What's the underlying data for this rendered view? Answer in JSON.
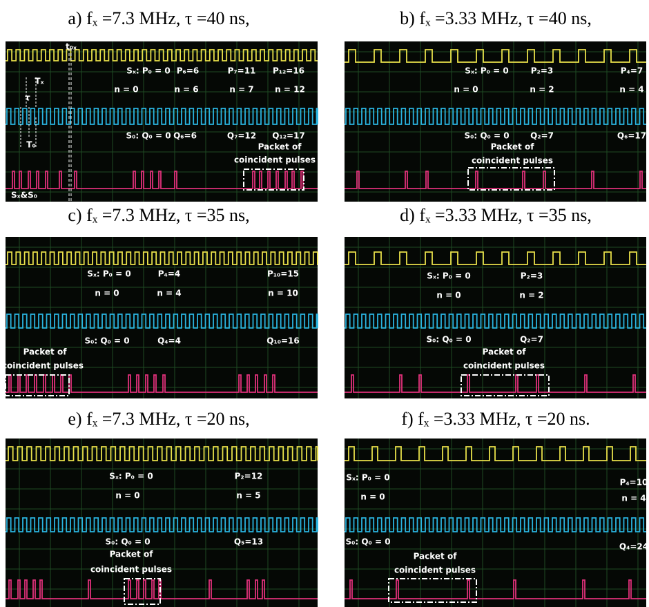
{
  "panels": [
    {
      "caption": "a) fₓ =7.3 MHz, τ =40 ns,",
      "labels": [
        "t₀ₓ",
        "Tₓ",
        "τ",
        "T₀",
        "Sₓ: P₀ = 0",
        "P₆=6",
        "P₇=11",
        "P₁₂=16",
        "n = 0",
        "n = 6",
        "n = 7",
        "n = 12",
        "S₀: Q₀ = 0",
        "Q₆=6",
        "Q₇=12",
        "Q₁₂=17",
        "Packet of",
        "coincident pulses",
        "Sₓ&S₀"
      ]
    },
    {
      "caption": "b) fₓ =3.33 MHz, τ =40 ns,",
      "labels": [
        "Sₓ: P₀ = 0",
        "P₂=3",
        "P₄=7",
        "n = 0",
        "n = 2",
        "n = 4",
        "S₀: Q₀ = 0",
        "Q₂=7",
        "Q₆=17",
        "Packet of",
        "coincident pulses"
      ]
    },
    {
      "caption": "c) fₓ =7.3 MHz, τ =35 ns,",
      "labels": [
        "Sₓ: P₀ = 0",
        "P₄=4",
        "P₁₀=15",
        "n = 0",
        "n = 4",
        "n = 10",
        "S₀: Q₀ = 0",
        "Q₄=4",
        "Q₁₀=16",
        "Packet of",
        "coincident pulses"
      ]
    },
    {
      "caption": "d) fₓ =3.33 MHz, τ =35 ns,",
      "labels": [
        "Sₓ: P₀ = 0",
        "P₂=3",
        "n = 0",
        "n = 2",
        "S₀: Q₀ = 0",
        "Q₂=7",
        "Packet of",
        "coincident pulses"
      ]
    },
    {
      "caption": "e) fₓ =7.3 MHz, τ =20 ns,",
      "labels": [
        "Sₓ: P₀ = 0",
        "P₂=12",
        "n = 0",
        "n = 5",
        "S₀: Q₀ = 0",
        "Q₅=13",
        "Packet of",
        "coincident pulses"
      ]
    },
    {
      "caption": "f) fₓ =3.33 MHz, τ =20 ns.",
      "labels": [
        "Sₓ: P₀ = 0",
        "P₄=10",
        "n = 0",
        "n = 4",
        "S₀: Q₀ = 0",
        "Q₄=24",
        "Packet of",
        "coincident pulses"
      ]
    }
  ]
}
